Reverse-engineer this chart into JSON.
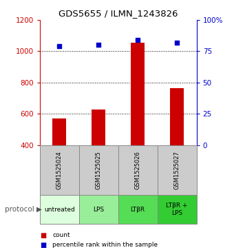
{
  "title": "GDS5655 / ILMN_1243826",
  "samples": [
    "GSM1525024",
    "GSM1525025",
    "GSM1525026",
    "GSM1525027"
  ],
  "protocols": [
    "untreated",
    "LPS",
    "LTβR",
    "LTβR +\nLPS"
  ],
  "counts": [
    570,
    625,
    1055,
    765
  ],
  "percentile_ranks": [
    79,
    80,
    84,
    82
  ],
  "ylim_left": [
    400,
    1200
  ],
  "ylim_right": [
    0,
    100
  ],
  "yticks_left": [
    400,
    600,
    800,
    1000,
    1200
  ],
  "yticks_right": [
    0,
    25,
    50,
    75,
    100
  ],
  "bar_color": "#cc0000",
  "dot_color": "#0000cc",
  "left_axis_color": "#cc0000",
  "right_axis_color": "#0000cc",
  "grid_color": "#000000",
  "bg_color": "#ffffff",
  "plot_bg": "#ffffff",
  "sample_box_color": "#cccccc",
  "protocol_box_colors": [
    "#ddffdd",
    "#99ee99",
    "#55dd55",
    "#33cc33"
  ],
  "legend_count_color": "#cc0000",
  "legend_pct_color": "#0000cc",
  "protocol_label_color": "#888888"
}
